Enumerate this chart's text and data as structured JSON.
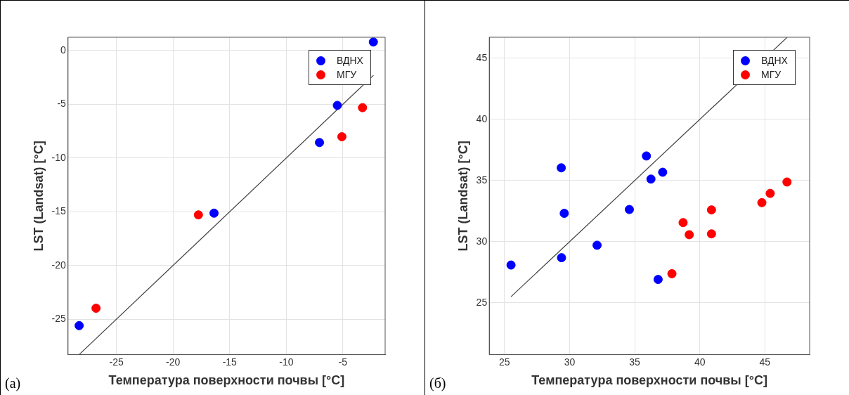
{
  "chart_data": [
    {
      "type": "scatter",
      "xlabel": "Температура поверхности почвы [°C]",
      "ylabel": "LST (Landsat) [°C]",
      "annotations": [
        "(а)"
      ],
      "xlim": [
        -29.27,
        -1.27
      ],
      "ylim": [
        -28.3,
        1.24
      ],
      "xticks": [
        -25,
        -20,
        -15,
        -10,
        -5
      ],
      "yticks": [
        -25,
        -20,
        -15,
        -10,
        -5,
        0
      ],
      "grid": true,
      "legend": "top right",
      "marker": "circle",
      "series": [
        {
          "name": "ВДНХ",
          "color": "#0000ff",
          "x": [
            -28.29,
            -16.38,
            -7.07,
            -5.49,
            -2.31
          ],
          "values": [
            -25.6,
            -15.13,
            -8.56,
            -5.1,
            0.8
          ]
        },
        {
          "name": "МГУ",
          "color": "#ff0000",
          "x": [
            -26.8,
            -17.76,
            -5.09,
            -3.27
          ],
          "values": [
            -23.98,
            -15.29,
            -8.02,
            -5.31
          ]
        },
        {
          "type": "line",
          "color": "#404040",
          "marker": "none",
          "x": [
            -28.3,
            -2.3
          ],
          "values": [
            -28.3,
            -2.3
          ]
        }
      ]
    },
    {
      "type": "scatter",
      "xlabel": "Температура поверхности почвы [°C]",
      "ylabel": "LST (Landsat) [°C]",
      "annotations": [
        "(б)"
      ],
      "xlim": [
        23.83,
        48.44
      ],
      "ylim": [
        20.76,
        46.72
      ],
      "xticks": [
        25,
        30,
        35,
        40,
        45
      ],
      "yticks": [
        25,
        30,
        35,
        40,
        45
      ],
      "grid": true,
      "legend": "top right",
      "marker": "circle",
      "series": [
        {
          "name": "ВДНХ",
          "color": "#0000ff",
          "x": [
            25.5,
            29.36,
            29.59,
            29.38,
            32.11,
            34.59,
            35.9,
            36.25,
            37.15,
            36.8
          ],
          "values": [
            28.09,
            36.04,
            32.32,
            28.69,
            29.71,
            32.63,
            37.01,
            35.12,
            35.68,
            26.91
          ]
        },
        {
          "name": "МГУ",
          "color": "#ff0000",
          "x": [
            37.86,
            38.72,
            39.19,
            40.9,
            40.9,
            44.77,
            45.41,
            46.7
          ],
          "values": [
            27.38,
            31.56,
            30.57,
            32.6,
            30.64,
            33.19,
            33.95,
            34.88
          ]
        },
        {
          "type": "line",
          "color": "#404040",
          "marker": "none",
          "x": [
            25.5,
            46.7
          ],
          "values": [
            25.5,
            46.7
          ]
        }
      ]
    }
  ]
}
